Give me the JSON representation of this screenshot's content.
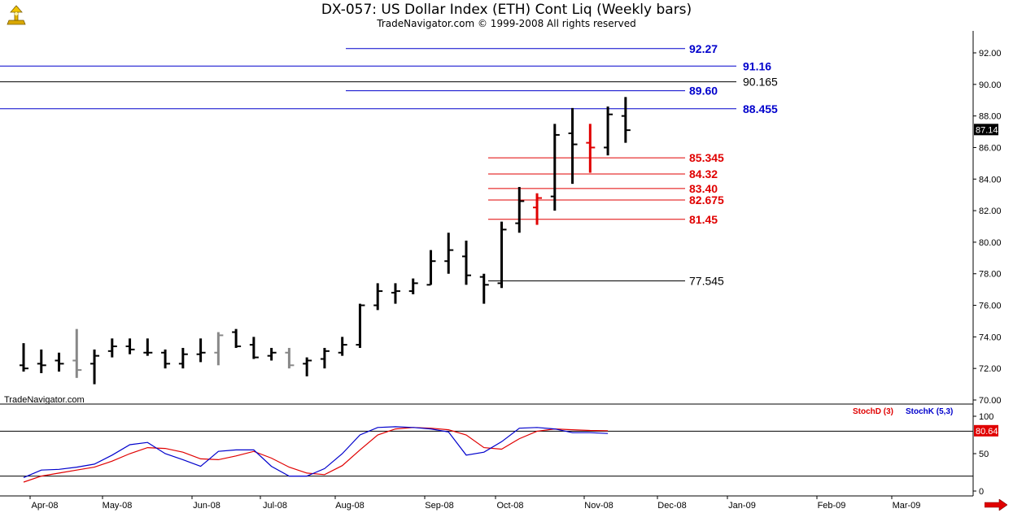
{
  "header": {
    "title": "DX-057:  US Dollar Index (ETH) Cont Liq  (Weekly bars)",
    "copyright": "TradeNavigator.com © 1999-2008 All rights reserved"
  },
  "watermark": "TradeNavigator.com",
  "colors": {
    "up_bar": "#000000",
    "gray_bar": "#888888",
    "red_bar": "#e00000",
    "level_black": "#000000",
    "level_blue": "#0000cc",
    "level_red": "#e00000",
    "stochD": "#e00000",
    "stochK": "#0000cc",
    "last_price_bg": "#000000",
    "stoch_last_bg": "#e00000"
  },
  "chart_data": [
    {
      "type": "ohlc",
      "y_range": [
        69.6,
        93.3
      ],
      "y_ticks": [
        "92.00",
        "90.00",
        "88.00",
        "86.00",
        "84.00",
        "82.00",
        "80.00",
        "78.00",
        "76.00",
        "74.00",
        "72.00",
        "70.00"
      ],
      "last_price": "87.14",
      "x_labels": [
        "Apr-08",
        "May-08",
        "Jun-08",
        "Jul-08",
        "Aug-08",
        "Sep-08",
        "Oct-08",
        "Nov-08",
        "Dec-08",
        "Jan-09",
        "Feb-09",
        "Mar-09"
      ],
      "bars": [
        {
          "o": 72.2,
          "h": 73.6,
          "l": 71.8,
          "c": 72.0,
          "color": "black"
        },
        {
          "o": 72.3,
          "h": 73.2,
          "l": 71.7,
          "c": 72.2,
          "color": "black"
        },
        {
          "o": 72.5,
          "h": 73.0,
          "l": 71.8,
          "c": 72.3,
          "color": "black"
        },
        {
          "o": 72.5,
          "h": 74.5,
          "l": 71.4,
          "c": 71.9,
          "color": "gray"
        },
        {
          "o": 72.3,
          "h": 73.2,
          "l": 71.0,
          "c": 72.8,
          "color": "black"
        },
        {
          "o": 73.1,
          "h": 73.9,
          "l": 72.7,
          "c": 73.4,
          "color": "black"
        },
        {
          "o": 73.4,
          "h": 73.9,
          "l": 72.9,
          "c": 73.2,
          "color": "black"
        },
        {
          "o": 73.0,
          "h": 73.9,
          "l": 72.8,
          "c": 73.0,
          "color": "black"
        },
        {
          "o": 73.0,
          "h": 73.2,
          "l": 72.0,
          "c": 72.3,
          "color": "black"
        },
        {
          "o": 72.3,
          "h": 73.3,
          "l": 72.0,
          "c": 72.9,
          "color": "black"
        },
        {
          "o": 72.9,
          "h": 73.9,
          "l": 72.4,
          "c": 73.0,
          "color": "black"
        },
        {
          "o": 73.0,
          "h": 74.3,
          "l": 72.2,
          "c": 74.1,
          "color": "gray"
        },
        {
          "o": 74.3,
          "h": 74.5,
          "l": 73.3,
          "c": 73.4,
          "color": "black"
        },
        {
          "o": 73.5,
          "h": 74.0,
          "l": 72.6,
          "c": 72.7,
          "color": "black"
        },
        {
          "o": 72.8,
          "h": 73.3,
          "l": 72.5,
          "c": 73.0,
          "color": "black"
        },
        {
          "o": 73.0,
          "h": 73.3,
          "l": 72.0,
          "c": 72.2,
          "color": "gray"
        },
        {
          "o": 72.3,
          "h": 72.7,
          "l": 71.5,
          "c": 72.5,
          "color": "black"
        },
        {
          "o": 72.6,
          "h": 73.3,
          "l": 72.0,
          "c": 73.1,
          "color": "black"
        },
        {
          "o": 73.0,
          "h": 74.0,
          "l": 72.8,
          "c": 73.5,
          "color": "black"
        },
        {
          "o": 73.5,
          "h": 76.1,
          "l": 73.3,
          "c": 76.0,
          "color": "black"
        },
        {
          "o": 76.0,
          "h": 77.4,
          "l": 75.7,
          "c": 76.9,
          "color": "black"
        },
        {
          "o": 76.8,
          "h": 77.4,
          "l": 76.1,
          "c": 76.9,
          "color": "black"
        },
        {
          "o": 76.9,
          "h": 77.7,
          "l": 76.7,
          "c": 77.4,
          "color": "black"
        },
        {
          "o": 77.3,
          "h": 79.5,
          "l": 77.3,
          "c": 78.8,
          "color": "black"
        },
        {
          "o": 78.8,
          "h": 80.6,
          "l": 78.0,
          "c": 79.5,
          "color": "black"
        },
        {
          "o": 79.1,
          "h": 80.1,
          "l": 77.3,
          "c": 77.9,
          "color": "black"
        },
        {
          "o": 77.8,
          "h": 78.0,
          "l": 76.1,
          "c": 77.3,
          "color": "black"
        },
        {
          "o": 77.4,
          "h": 81.3,
          "l": 77.1,
          "c": 80.8,
          "color": "black"
        },
        {
          "o": 81.2,
          "h": 83.5,
          "l": 80.6,
          "c": 82.6,
          "color": "black"
        },
        {
          "o": 82.2,
          "h": 83.1,
          "l": 81.1,
          "c": 82.8,
          "color": "red"
        },
        {
          "o": 82.9,
          "h": 87.5,
          "l": 82.0,
          "c": 86.8,
          "color": "black"
        },
        {
          "o": 86.9,
          "h": 88.5,
          "l": 83.7,
          "c": 86.2,
          "color": "black"
        },
        {
          "o": 86.3,
          "h": 87.5,
          "l": 84.4,
          "c": 86.0,
          "color": "red"
        },
        {
          "o": 86.0,
          "h": 88.6,
          "l": 85.5,
          "c": 88.1,
          "color": "black"
        },
        {
          "o": 88.0,
          "h": 89.2,
          "l": 86.3,
          "c": 87.1,
          "color": "black"
        }
      ],
      "levels": [
        {
          "value": 92.27,
          "label": "92.27",
          "color": "blue",
          "span": "partial"
        },
        {
          "value": 91.16,
          "label": "91.16",
          "color": "blue",
          "span": "full"
        },
        {
          "value": 90.165,
          "label": "90.165",
          "color": "black",
          "span": "full"
        },
        {
          "value": 89.6,
          "label": "89.60",
          "color": "blue",
          "span": "partial"
        },
        {
          "value": 88.455,
          "label": "88.455",
          "color": "blue",
          "span": "full"
        },
        {
          "value": 85.345,
          "label": "85.345",
          "color": "red",
          "span": "recent"
        },
        {
          "value": 84.32,
          "label": "84.32",
          "color": "red",
          "span": "recent"
        },
        {
          "value": 83.4,
          "label": "83.40",
          "color": "red",
          "span": "recent"
        },
        {
          "value": 82.675,
          "label": "82.675",
          "color": "red",
          "span": "recent"
        },
        {
          "value": 81.45,
          "label": "81.45",
          "color": "red",
          "span": "recent"
        },
        {
          "value": 77.545,
          "label": "77.545",
          "color": "black",
          "span": "mid"
        }
      ]
    },
    {
      "type": "line",
      "legend": [
        "StochD (3)",
        "StochK (5,3)"
      ],
      "y_range": [
        0,
        100
      ],
      "y_ticks": [
        "100",
        "50",
        "0"
      ],
      "reference_lines": [
        80,
        20
      ],
      "last_value": "80.64",
      "series": [
        {
          "name": "StochD (3)",
          "color": "red",
          "values": [
            12,
            20,
            24,
            28,
            32,
            40,
            50,
            58,
            57,
            52,
            43,
            42,
            47,
            53,
            44,
            32,
            24,
            22,
            34,
            55,
            75,
            83,
            85,
            84,
            82,
            75,
            58,
            56,
            70,
            80,
            83,
            82,
            81,
            80.6
          ]
        },
        {
          "name": "StochK (5,3)",
          "color": "blue",
          "values": [
            18,
            28,
            29,
            32,
            36,
            48,
            62,
            65,
            50,
            42,
            33,
            53,
            55,
            55,
            33,
            20,
            20,
            30,
            50,
            75,
            85,
            86,
            85,
            83,
            79,
            48,
            52,
            66,
            84,
            85,
            83,
            78,
            78,
            77
          ]
        }
      ]
    }
  ]
}
